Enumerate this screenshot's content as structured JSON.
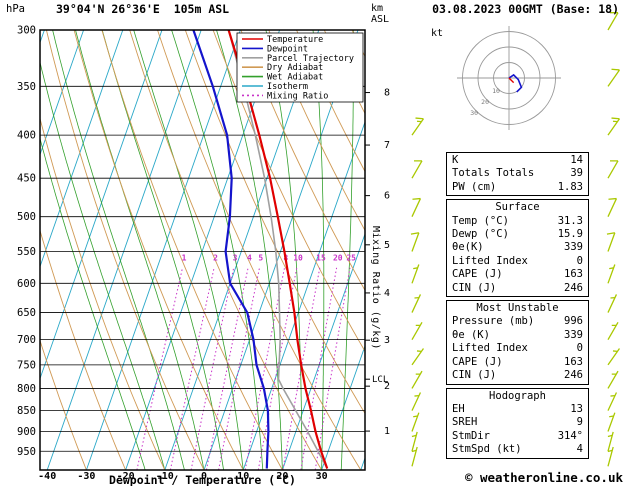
{
  "header": {
    "station": "39°04'N 26°36'E  105m ASL",
    "datetime": "03.08.2023 00GMT (Base: 18)"
  },
  "axes": {
    "pressure_unit": "hPa",
    "height_unit_km": "km",
    "height_unit_asl": "ASL",
    "temp_label": "Dewpoint / Temperature (°C)",
    "mixing_label": "Mixing Ratio (g/kg)",
    "lcl": "LCL",
    "hodo_unit": "kt"
  },
  "footer": {
    "copyright": "© weatheronline.co.uk"
  },
  "stats": {
    "sections": [
      {
        "header": null,
        "rows": [
          [
            "K",
            "14"
          ],
          [
            "Totals Totals",
            "39"
          ],
          [
            "PW (cm)",
            "1.83"
          ]
        ]
      },
      {
        "header": "Surface",
        "rows": [
          [
            "Temp (°C)",
            "31.3"
          ],
          [
            "Dewp (°C)",
            "15.9"
          ],
          [
            "θe(K)",
            "339"
          ],
          [
            "Lifted Index",
            "0"
          ],
          [
            "CAPE (J)",
            "163"
          ],
          [
            "CIN (J)",
            "246"
          ]
        ]
      },
      {
        "header": "Most Unstable",
        "rows": [
          [
            "Pressure (mb)",
            "996"
          ],
          [
            "θe (K)",
            "339"
          ],
          [
            "Lifted Index",
            "0"
          ],
          [
            "CAPE (J)",
            "163"
          ],
          [
            "CIN (J)",
            "246"
          ]
        ]
      },
      {
        "header": "Hodograph",
        "rows": [
          [
            "EH",
            "13"
          ],
          [
            "SREH",
            "9"
          ],
          [
            "StmDir",
            "314°"
          ],
          [
            "StmSpd (kt)",
            "4"
          ]
        ]
      }
    ]
  },
  "chart_data": {
    "type": "skewt_log_p",
    "pressure_range": [
      300,
      1000
    ],
    "pressure_ticks": [
      300,
      350,
      400,
      450,
      500,
      550,
      600,
      650,
      700,
      750,
      800,
      850,
      900,
      950
    ],
    "temp_ticks": [
      -40,
      -30,
      -20,
      -10,
      0,
      10,
      20,
      30
    ],
    "km_ticks": [
      {
        "km": 1,
        "p": 899
      },
      {
        "km": 2,
        "p": 795
      },
      {
        "km": 3,
        "p": 701
      },
      {
        "km": 4,
        "p": 616
      },
      {
        "km": 5,
        "p": 540
      },
      {
        "km": 6,
        "p": 472
      },
      {
        "km": 7,
        "p": 411
      },
      {
        "km": 8,
        "p": 356
      }
    ],
    "lcl_pressure": 780,
    "mixing_ratio_lines": [
      1,
      2,
      3,
      4,
      5,
      8,
      10,
      15,
      20,
      25
    ],
    "isotherms": {
      "min": -120,
      "max": 60,
      "step": 10
    },
    "dry_adiabats": {
      "min": -30,
      "max": 120,
      "step": 10
    },
    "wet_adiabats": {
      "min": -15,
      "max": 35,
      "step": 5
    },
    "series": {
      "temperature": [
        [
          996,
          31.3
        ],
        [
          950,
          28.2
        ],
        [
          900,
          25.0
        ],
        [
          850,
          22.0
        ],
        [
          800,
          18.6
        ],
        [
          750,
          15.4
        ],
        [
          700,
          12.2
        ],
        [
          650,
          9.0
        ],
        [
          600,
          5.2
        ],
        [
          550,
          1.0
        ],
        [
          500,
          -3.8
        ],
        [
          450,
          -9.2
        ],
        [
          400,
          -15.8
        ],
        [
          350,
          -23.6
        ],
        [
          300,
          -33.0
        ]
      ],
      "dewpoint": [
        [
          996,
          15.9
        ],
        [
          950,
          14.5
        ],
        [
          900,
          13.0
        ],
        [
          850,
          11.0
        ],
        [
          800,
          8.0
        ],
        [
          750,
          4.0
        ],
        [
          700,
          1.0
        ],
        [
          650,
          -3.0
        ],
        [
          600,
          -10.0
        ],
        [
          550,
          -14.0
        ],
        [
          500,
          -16.0
        ],
        [
          450,
          -19.0
        ],
        [
          400,
          -24.0
        ],
        [
          350,
          -32.0
        ],
        [
          300,
          -42.0
        ]
      ],
      "parcel": [
        [
          996,
          31.3
        ],
        [
          900,
          23.0
        ],
        [
          800,
          12.9
        ],
        [
          780,
          10.9
        ],
        [
          700,
          7.8
        ],
        [
          650,
          5.2
        ],
        [
          600,
          2.4
        ],
        [
          550,
          -1.2
        ],
        [
          500,
          -5.5
        ],
        [
          450,
          -10.6
        ],
        [
          400,
          -16.8
        ],
        [
          350,
          -24.2
        ],
        [
          300,
          -33.0
        ]
      ]
    },
    "wind_barbs": [
      {
        "p": 300,
        "dir": 30,
        "spd": 10
      },
      {
        "p": 350,
        "dir": 35,
        "spd": 10
      },
      {
        "p": 400,
        "dir": 35,
        "spd": 15
      },
      {
        "p": 450,
        "dir": 30,
        "spd": 10
      },
      {
        "p": 500,
        "dir": 25,
        "spd": 10
      },
      {
        "p": 550,
        "dir": 20,
        "spd": 10
      },
      {
        "p": 600,
        "dir": 20,
        "spd": 5
      },
      {
        "p": 650,
        "dir": 25,
        "spd": 5
      },
      {
        "p": 700,
        "dir": 30,
        "spd": 5
      },
      {
        "p": 750,
        "dir": 35,
        "spd": 5
      },
      {
        "p": 800,
        "dir": 30,
        "spd": 5
      },
      {
        "p": 850,
        "dir": 25,
        "spd": 5
      },
      {
        "p": 900,
        "dir": 20,
        "spd": 5
      },
      {
        "p": 950,
        "dir": 15,
        "spd": 5
      },
      {
        "p": 990,
        "dir": 15,
        "spd": 5
      }
    ],
    "legend": [
      {
        "label": "Temperature",
        "color": "#e00000",
        "dash": ""
      },
      {
        "label": "Dewpoint",
        "color": "#1414cc",
        "dash": ""
      },
      {
        "label": "Parcel Trajectory",
        "color": "#a0a0a0",
        "dash": ""
      },
      {
        "label": "Dry Adiabat",
        "color": "#d09a55",
        "dash": ""
      },
      {
        "label": "Wet Adiabat",
        "color": "#33a02c",
        "dash": ""
      },
      {
        "label": "Isotherm",
        "color": "#2aa8c8",
        "dash": ""
      },
      {
        "label": "Mixing Ratio",
        "color": "#c832c8",
        "dash": "2 3"
      }
    ],
    "hodograph": {
      "rings": [
        10,
        20,
        30
      ],
      "trace_uv": [
        [
          0,
          0
        ],
        [
          3,
          -2
        ],
        [
          6,
          1
        ],
        [
          8,
          6
        ],
        [
          5,
          9
        ]
      ],
      "storm_uv": [
        3,
        3
      ]
    },
    "colors": {
      "temperature": "#e00000",
      "dewpoint": "#1414cc",
      "parcel": "#a0a0a0",
      "dry_adiabat": "#d09a55",
      "wet_adiabat": "#33a02c",
      "isotherm": "#2aa8c8",
      "mixing_ratio": "#c832c8",
      "barb": "#aac800",
      "grid": "#000000"
    }
  }
}
